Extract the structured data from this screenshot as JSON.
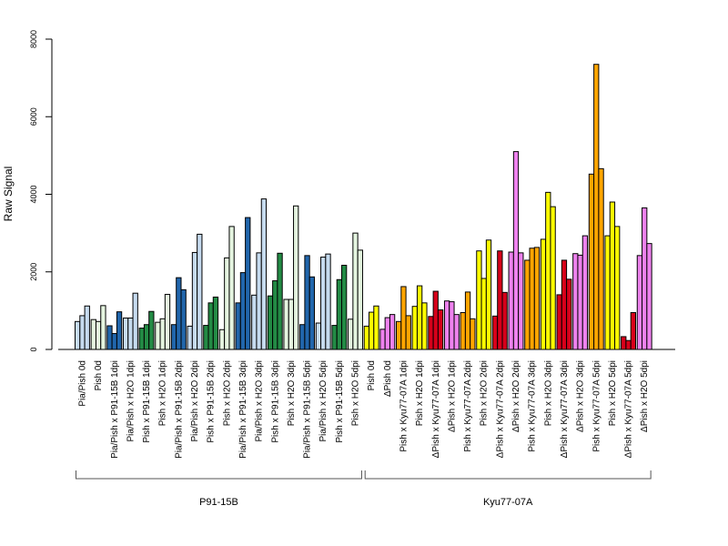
{
  "chart_data": {
    "type": "bar",
    "ylabel": "Raw Signal",
    "ylim": [
      0,
      8000
    ],
    "yticks": [
      0,
      2000,
      4000,
      6000,
      8000
    ],
    "groups": [
      {
        "name": "P91-15B",
        "start": 0,
        "end": 17
      },
      {
        "name": "Kyu77-07A",
        "start": 18,
        "end": 35
      }
    ],
    "categories": [
      {
        "label": "Pia/Pish 0d",
        "color": "#c6dbef",
        "values": [
          720,
          870,
          1120
        ]
      },
      {
        "label": "Pish 0d",
        "color": "#e5f5e0",
        "values": [
          770,
          720,
          1130
        ]
      },
      {
        "label": "Pia/Pish x P91-15B 1dpi",
        "color": "#2166ac",
        "values": [
          610,
          410,
          970
        ]
      },
      {
        "label": "Pia/Pish x H2O 1dpi",
        "color": "#c6dbef",
        "values": [
          810,
          810,
          1450
        ]
      },
      {
        "label": "Pish x P91-15B 1dpi",
        "color": "#238b45",
        "values": [
          550,
          640,
          980
        ]
      },
      {
        "label": "Pish x H2O 1dpi",
        "color": "#e5f5e0",
        "values": [
          700,
          790,
          1420
        ]
      },
      {
        "label": "Pia/Pish x P91-15B 2dpi",
        "color": "#2166ac",
        "values": [
          640,
          1850,
          1540
        ]
      },
      {
        "label": "Pia/Pish x H2O 2dpi",
        "color": "#c6dbef",
        "values": [
          600,
          2500,
          2970
        ]
      },
      {
        "label": "Pish x P91-15B 2dpi",
        "color": "#238b45",
        "values": [
          620,
          1200,
          1350
        ]
      },
      {
        "label": "Pish x H2O 2dpi",
        "color": "#e5f5e0",
        "values": [
          510,
          2360,
          3170
        ]
      },
      {
        "label": "Pia/Pish x P91-15B 3dpi",
        "color": "#2166ac",
        "values": [
          1200,
          1980,
          3400
        ]
      },
      {
        "label": "Pia/Pish x H2O 3dpi",
        "color": "#c6dbef",
        "values": [
          1400,
          2490,
          3880
        ]
      },
      {
        "label": "Pish x P91-15B 3dpi",
        "color": "#238b45",
        "values": [
          1380,
          1770,
          2480
        ]
      },
      {
        "label": "Pish x H2O 3dpi",
        "color": "#e5f5e0",
        "values": [
          1290,
          1290,
          3700
        ]
      },
      {
        "label": "Pia/Pish x P91-15B 5dpi",
        "color": "#2166ac",
        "values": [
          640,
          2420,
          1870
        ]
      },
      {
        "label": "Pia/Pish x H2O 5dpi",
        "color": "#c6dbef",
        "values": [
          680,
          2380,
          2460
        ]
      },
      {
        "label": "Pish x P91-15B 5dpi",
        "color": "#238b45",
        "values": [
          620,
          1800,
          2170
        ]
      },
      {
        "label": "Pish x H2O 5dpi",
        "color": "#e5f5e0",
        "values": [
          780,
          3000,
          2560
        ]
      },
      {
        "label": "Pish 0d",
        "color": "#ffff00",
        "values": [
          600,
          960,
          1120
        ]
      },
      {
        "label": "ΔPish 0d",
        "color": "#ee82ee",
        "values": [
          520,
          820,
          900
        ]
      },
      {
        "label": "Pish x Kyu77-07A 1dpi",
        "color": "#ffa500",
        "values": [
          720,
          1620,
          870
        ]
      },
      {
        "label": "Pish x H2O 1dpi",
        "color": "#ffff00",
        "values": [
          1110,
          1640,
          1200
        ]
      },
      {
        "label": "ΔPish x Kyu77-07A 1dpi",
        "color": "#d7001a",
        "values": [
          850,
          1500,
          1020
        ]
      },
      {
        "label": "ΔPish x H2O 1dpi",
        "color": "#ee82ee",
        "values": [
          1250,
          1230,
          900
        ]
      },
      {
        "label": "Pish x Kyu77-07A 2dpi",
        "color": "#ffa500",
        "values": [
          950,
          1480,
          790
        ]
      },
      {
        "label": "Pish x H2O 2dpi",
        "color": "#ffff00",
        "values": [
          2540,
          1830,
          2820
        ]
      },
      {
        "label": "ΔPish x Kyu77-07A 2dpi",
        "color": "#d7001a",
        "values": [
          860,
          2540,
          1470
        ]
      },
      {
        "label": "ΔPish x H2O 2dpi",
        "color": "#ee82ee",
        "values": [
          2510,
          5100,
          2490
        ]
      },
      {
        "label": "Pish x Kyu77-07A 3dpi",
        "color": "#ffa500",
        "values": [
          2300,
          2610,
          2630
        ]
      },
      {
        "label": "Pish x H2O 3dpi",
        "color": "#ffff00",
        "values": [
          2840,
          4050,
          3680
        ]
      },
      {
        "label": "ΔPish x Kyu77-07A 3dpi",
        "color": "#d7001a",
        "values": [
          1410,
          2300,
          1810
        ]
      },
      {
        "label": "ΔPish x H2O 3dpi",
        "color": "#ee82ee",
        "values": [
          2470,
          2430,
          2930
        ]
      },
      {
        "label": "Pish x Kyu77-07A 5dpi",
        "color": "#ffa500",
        "values": [
          4520,
          7350,
          4660
        ]
      },
      {
        "label": "Pish x H2O 5dpi",
        "color": "#ffff00",
        "values": [
          2930,
          3800,
          3170
        ]
      },
      {
        "label": "ΔPish x Kyu77-07A 5dpi",
        "color": "#d7001a",
        "values": [
          330,
          230,
          950
        ]
      },
      {
        "label": "ΔPish x H2O 5dpi",
        "color": "#ee82ee",
        "values": [
          2420,
          3650,
          2730
        ]
      }
    ]
  }
}
